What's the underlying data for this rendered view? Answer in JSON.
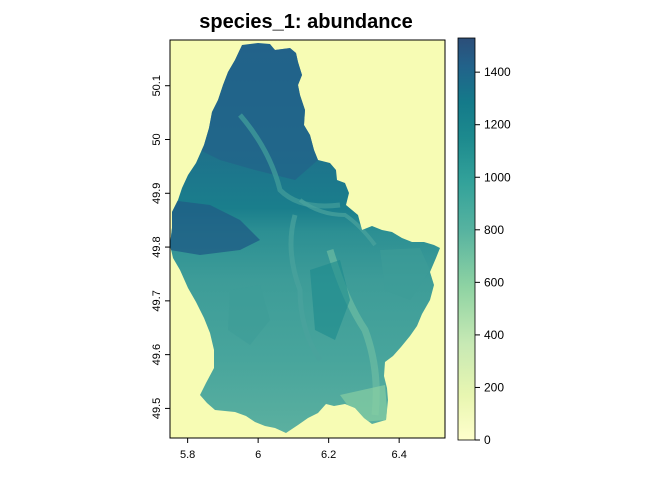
{
  "title": "species_1: abundance",
  "map": {
    "x_ticks": [
      "5.8",
      "6",
      "6.2",
      "6.4"
    ],
    "y_ticks": [
      "49.5",
      "49.6",
      "49.7",
      "49.8",
      "49.9",
      "50",
      "50.1"
    ],
    "xlim": [
      5.75,
      6.53
    ],
    "ylim": [
      49.445,
      50.185
    ],
    "background_color": "#f7fcb4"
  },
  "colorbar": {
    "range": [
      0,
      1530
    ],
    "ticks": [
      "0",
      "200",
      "400",
      "600",
      "800",
      "1000",
      "1200",
      "1400"
    ],
    "tick_values": [
      0,
      200,
      400,
      600,
      800,
      1000,
      1200,
      1400
    ],
    "colors": [
      "#ffffcc",
      "#e8f6b1",
      "#c7e9b4",
      "#8fd3a3",
      "#57b3a0",
      "#33a29a",
      "#1d8a8e",
      "#147a8a",
      "#22628a",
      "#2c4e79"
    ]
  }
}
